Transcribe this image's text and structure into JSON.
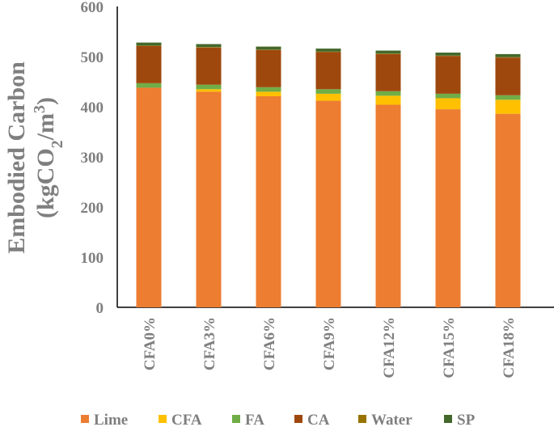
{
  "chart_data": {
    "type": "bar",
    "stacked": true,
    "ylabel_line1": "Embodied Carbon",
    "ylabel_line2_prefix": "(kgCO",
    "ylabel_line2_sub": "2",
    "ylabel_line2_mid": "/m",
    "ylabel_line2_sup": "3",
    "ylabel_line2_suffix": ")",
    "ylim": [
      0,
      600
    ],
    "yticks": [
      "0",
      "100",
      "200",
      "300",
      "400",
      "500",
      "600"
    ],
    "ytick_values": [
      0,
      100,
      200,
      300,
      400,
      500,
      600
    ],
    "legend_position": "bottom",
    "grid": false,
    "categories": [
      "CFA0%",
      "CFA3%",
      "CFA6%",
      "CFA9%",
      "CFA12%",
      "CFA15%",
      "CFA18%"
    ],
    "series": [
      {
        "name": "Lime",
        "color": "#ed7d31",
        "values": [
          438,
          430,
          421,
          412,
          404,
          395,
          386
        ]
      },
      {
        "name": "CFA",
        "color": "#ffc000",
        "values": [
          0,
          5,
          9,
          14,
          18,
          22,
          28
        ]
      },
      {
        "name": "FA",
        "color": "#70ad47",
        "values": [
          9,
          9,
          9,
          9,
          9,
          9,
          9
        ]
      },
      {
        "name": "CA",
        "color": "#9e480e",
        "values": [
          74,
          74,
          74,
          74,
          74,
          75,
          75
        ]
      },
      {
        "name": "Water",
        "color": "#997300",
        "values": [
          1,
          1,
          1,
          1,
          1,
          1,
          1
        ]
      },
      {
        "name": "SP",
        "color": "#43682b",
        "values": [
          6,
          6,
          6,
          6,
          6,
          6,
          6
        ]
      }
    ]
  }
}
